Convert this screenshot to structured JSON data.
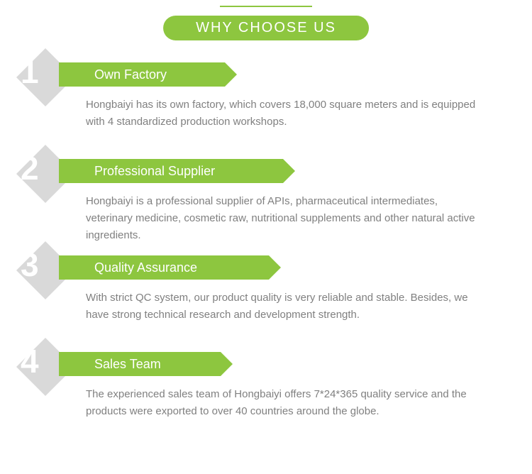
{
  "header": {
    "title": "WHY CHOOSE US",
    "badge_color": "#8dc63f",
    "text_color": "#ffffff"
  },
  "items": [
    {
      "number": "1",
      "title": "Own Factory",
      "description": "Hongbaiyi has its own factory, which covers 18,000 square meters and is equipped with 4 standardized production workshops."
    },
    {
      "number": "2",
      "title": "Professional Supplier",
      "description": "Hongbaiyi is a professional supplier of APIs, pharmaceutical intermediates, veterinary medicine, cosmetic raw, nutritional supplements and other natural active ingredients."
    },
    {
      "number": "3",
      "title": "Quality Assurance",
      "description": "With strict QC system, our product quality is very reliable and stable. Besides, we have strong technical research and development strength."
    },
    {
      "number": "4",
      "title": "Sales Team",
      "description": "The experienced sales team of Hongbaiyi offers 7*24*365 quality service and the products were exported to over 40 countries around the globe."
    }
  ],
  "colors": {
    "accent": "#8dc63f",
    "diamond": "#d9d9d9",
    "number": "#ffffff",
    "title_text": "#ffffff",
    "desc_text": "#808080",
    "background": "#ffffff"
  }
}
